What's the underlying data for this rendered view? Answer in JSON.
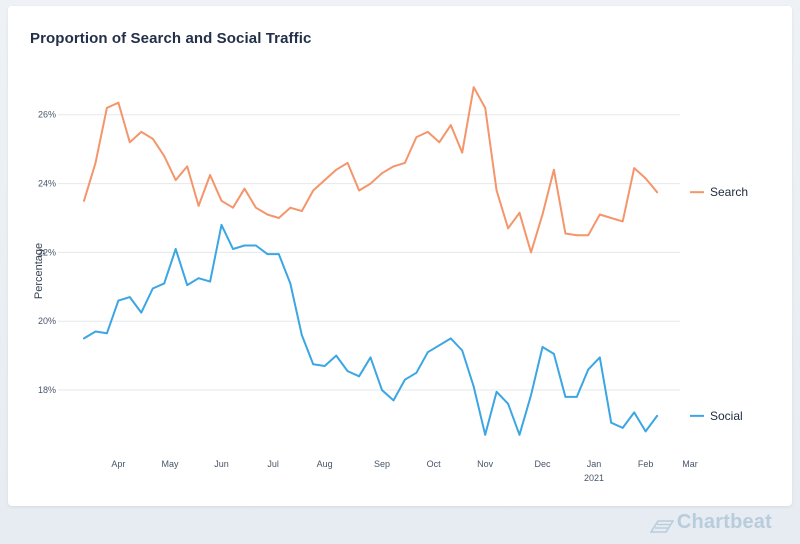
{
  "brand": {
    "name": "Chartbeat",
    "color": "#b8ccdc"
  },
  "colors": {
    "search": "#f4956b",
    "social": "#3ba6e4",
    "grid": "#e5e7eb",
    "text": "#475569"
  },
  "chart_data": {
    "type": "line",
    "title": "Proportion of Search and Social Traffic",
    "xlabel": "",
    "ylabel": "Percentage",
    "ylim": [
      16.2,
      27.3
    ],
    "yticks": [
      {
        "value": 18,
        "label": "18%"
      },
      {
        "value": 20,
        "label": "20%"
      },
      {
        "value": 22,
        "label": "22%"
      },
      {
        "value": 24,
        "label": "24%"
      },
      {
        "value": 26,
        "label": "26%"
      }
    ],
    "x_range": [
      0,
      52
    ],
    "xticks": [
      {
        "x": 3,
        "label": "Apr"
      },
      {
        "x": 7.5,
        "label": "May"
      },
      {
        "x": 12,
        "label": "Jun"
      },
      {
        "x": 16.5,
        "label": "Jul"
      },
      {
        "x": 21,
        "label": "Aug"
      },
      {
        "x": 26,
        "label": "Sep"
      },
      {
        "x": 30.5,
        "label": "Oct"
      },
      {
        "x": 35,
        "label": "Nov"
      },
      {
        "x": 40,
        "label": "Dec"
      },
      {
        "x": 44.5,
        "label": "Jan"
      },
      {
        "x": 49,
        "label": "Feb"
      },
      {
        "x": 53,
        "label": "Mar"
      }
    ],
    "x_sublabel": {
      "x": 44.5,
      "label": "2021"
    },
    "series": [
      {
        "name": "Search",
        "values": [
          [
            0,
            23.5
          ],
          [
            1,
            24.6
          ],
          [
            2,
            26.2
          ],
          [
            3,
            26.35
          ],
          [
            4,
            25.2
          ],
          [
            5,
            25.5
          ],
          [
            6,
            25.3
          ],
          [
            7,
            24.8
          ],
          [
            8,
            24.1
          ],
          [
            9,
            24.5
          ],
          [
            10,
            23.35
          ],
          [
            11,
            24.25
          ],
          [
            12,
            23.5
          ],
          [
            13,
            23.3
          ],
          [
            14,
            23.85
          ],
          [
            15,
            23.3
          ],
          [
            16,
            23.1
          ],
          [
            17,
            23.0
          ],
          [
            18,
            23.3
          ],
          [
            19,
            23.2
          ],
          [
            20,
            23.8
          ],
          [
            21,
            24.1
          ],
          [
            22,
            24.4
          ],
          [
            23,
            24.6
          ],
          [
            24,
            23.8
          ],
          [
            25,
            24.0
          ],
          [
            26,
            24.3
          ],
          [
            27,
            24.5
          ],
          [
            28,
            24.6
          ],
          [
            29,
            25.35
          ],
          [
            30,
            25.5
          ],
          [
            31,
            25.2
          ],
          [
            32,
            25.7
          ],
          [
            33,
            24.9
          ],
          [
            34,
            26.8
          ],
          [
            35,
            26.2
          ],
          [
            36,
            23.8
          ],
          [
            37,
            22.7
          ],
          [
            38,
            23.15
          ],
          [
            39,
            22.0
          ],
          [
            40,
            23.1
          ],
          [
            41,
            24.4
          ],
          [
            42,
            22.55
          ],
          [
            43,
            22.5
          ],
          [
            44,
            22.5
          ],
          [
            45,
            23.1
          ],
          [
            46,
            23.0
          ],
          [
            47,
            22.9
          ],
          [
            48,
            24.45
          ],
          [
            49,
            24.15
          ],
          [
            50,
            23.75
          ]
        ]
      },
      {
        "name": "Social",
        "values": [
          [
            0,
            19.5
          ],
          [
            1,
            19.7
          ],
          [
            2,
            19.65
          ],
          [
            3,
            20.6
          ],
          [
            4,
            20.7
          ],
          [
            5,
            20.25
          ],
          [
            6,
            20.95
          ],
          [
            7,
            21.1
          ],
          [
            8,
            22.1
          ],
          [
            9,
            21.05
          ],
          [
            10,
            21.25
          ],
          [
            11,
            21.15
          ],
          [
            12,
            22.8
          ],
          [
            13,
            22.1
          ],
          [
            14,
            22.2
          ],
          [
            15,
            22.2
          ],
          [
            16,
            21.95
          ],
          [
            17,
            21.95
          ],
          [
            18,
            21.1
          ],
          [
            19,
            19.6
          ],
          [
            20,
            18.75
          ],
          [
            21,
            18.7
          ],
          [
            22,
            19.0
          ],
          [
            23,
            18.55
          ],
          [
            24,
            18.4
          ],
          [
            25,
            18.95
          ],
          [
            26,
            18.0
          ],
          [
            27,
            17.7
          ],
          [
            28,
            18.3
          ],
          [
            29,
            18.5
          ],
          [
            30,
            19.1
          ],
          [
            31,
            19.3
          ],
          [
            32,
            19.5
          ],
          [
            33,
            19.15
          ],
          [
            34,
            18.1
          ],
          [
            35,
            16.7
          ],
          [
            36,
            17.95
          ],
          [
            37,
            17.6
          ],
          [
            38,
            16.7
          ],
          [
            39,
            17.85
          ],
          [
            40,
            19.25
          ],
          [
            41,
            19.05
          ],
          [
            42,
            17.8
          ],
          [
            43,
            17.8
          ],
          [
            44,
            18.6
          ],
          [
            45,
            18.95
          ],
          [
            46,
            17.05
          ],
          [
            47,
            16.9
          ],
          [
            48,
            17.35
          ],
          [
            49,
            16.8
          ],
          [
            50,
            17.25
          ]
        ]
      }
    ]
  }
}
